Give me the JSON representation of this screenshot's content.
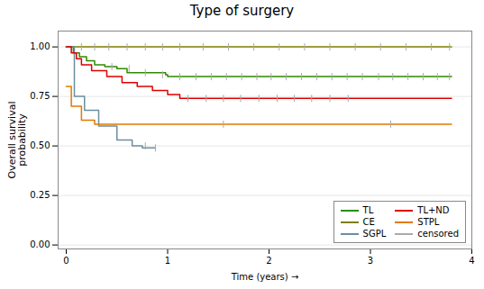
{
  "chart_data": {
    "type": "line",
    "title": "Type of surgery",
    "xlabel": "Time (years)",
    "ylabel": "Overall survival\nprobability",
    "xlim": [
      -0.08,
      4.0
    ],
    "ylim": [
      -0.02,
      1.08
    ],
    "xticks": [
      0,
      1,
      2,
      3,
      4
    ],
    "yticks": [
      {
        "value": 0,
        "label": "0.00"
      },
      {
        "value": 0.25,
        "label": "0.25"
      },
      {
        "value": 0.5,
        "label": "0.50"
      },
      {
        "value": 0.75,
        "label": "0.75"
      },
      {
        "value": 1,
        "label": "1.00"
      }
    ],
    "grid": true,
    "legend": "lower right",
    "series": [
      {
        "name": "TL",
        "type": "line",
        "color": "#2E8B00",
        "x": [
          0,
          0.07,
          0.07,
          0.13,
          0.13,
          0.2,
          0.2,
          0.28,
          0.28,
          0.38,
          0.38,
          0.5,
          0.5,
          0.6,
          0.6,
          0.98,
          0.98,
          1.0,
          1.0,
          3.8
        ],
        "values": [
          1.0,
          1.0,
          0.97,
          0.97,
          0.95,
          0.95,
          0.93,
          0.93,
          0.91,
          0.91,
          0.9,
          0.9,
          0.89,
          0.89,
          0.87,
          0.87,
          0.86,
          0.86,
          0.85,
          0.85
        ]
      },
      {
        "name": "CE",
        "type": "line",
        "color": "#808000",
        "x": [
          0,
          3.8
        ],
        "values": [
          1.0,
          1.0
        ]
      },
      {
        "name": "SGPL",
        "type": "line",
        "color": "#6B8E9F",
        "x": [
          0,
          0.08,
          0.08,
          0.18,
          0.18,
          0.32,
          0.32,
          0.5,
          0.5,
          0.65,
          0.65,
          0.75,
          0.75,
          0.88
        ],
        "values": [
          1.0,
          1.0,
          0.75,
          0.75,
          0.68,
          0.68,
          0.6,
          0.6,
          0.53,
          0.53,
          0.5,
          0.5,
          0.49,
          0.49
        ]
      },
      {
        "name": "TL+ND",
        "type": "line",
        "color": "#DD0000",
        "x": [
          0,
          0.05,
          0.05,
          0.1,
          0.1,
          0.15,
          0.15,
          0.25,
          0.25,
          0.4,
          0.4,
          0.55,
          0.55,
          0.7,
          0.7,
          0.85,
          0.85,
          1.0,
          1.0,
          1.12,
          1.12,
          3.1,
          3.1,
          3.8
        ],
        "values": [
          1.0,
          1.0,
          0.97,
          0.97,
          0.94,
          0.94,
          0.91,
          0.91,
          0.88,
          0.88,
          0.85,
          0.85,
          0.82,
          0.82,
          0.8,
          0.8,
          0.78,
          0.78,
          0.76,
          0.76,
          0.74,
          0.74,
          0.74,
          0.74
        ]
      },
      {
        "name": "STPL",
        "type": "line",
        "color": "#E07B00",
        "x": [
          0,
          0.05,
          0.05,
          0.15,
          0.15,
          0.28,
          0.28,
          3.8
        ],
        "values": [
          0.8,
          0.8,
          0.7,
          0.7,
          0.63,
          0.63,
          0.61,
          0.61
        ]
      },
      {
        "name": "censored",
        "type": "scatter",
        "marker": "tick",
        "color": "#aaaaaa",
        "x": [
          0.45,
          0.62,
          0.78,
          0.95,
          1.12,
          1.28,
          1.43,
          1.58,
          1.73,
          1.88,
          2.02,
          2.17,
          2.32,
          2.47,
          2.62,
          2.77,
          2.92,
          3.08,
          3.22,
          3.37,
          3.52,
          3.66,
          3.78,
          0.15,
          0.28,
          0.42,
          0.6,
          0.78,
          0.95,
          1.12,
          1.35,
          1.6,
          1.85,
          2.1,
          2.35,
          2.6,
          2.85,
          3.1,
          3.35,
          3.6,
          3.78,
          0.78,
          0.88,
          1.2,
          1.38,
          1.55,
          1.72,
          1.9,
          2.08,
          2.25,
          2.42,
          2.6,
          2.78,
          1.55,
          3.2
        ],
        "values": [
          0.9,
          0.89,
          0.87,
          0.86,
          0.85,
          0.85,
          0.85,
          0.85,
          0.85,
          0.85,
          0.85,
          0.85,
          0.85,
          0.85,
          0.85,
          0.85,
          0.85,
          0.85,
          0.85,
          0.85,
          0.85,
          0.85,
          0.85,
          1.0,
          1.0,
          1.0,
          1.0,
          1.0,
          1.0,
          1.0,
          1.0,
          1.0,
          1.0,
          1.0,
          1.0,
          1.0,
          1.0,
          1.0,
          1.0,
          1.0,
          1.0,
          0.5,
          0.49,
          0.74,
          0.74,
          0.74,
          0.74,
          0.74,
          0.74,
          0.74,
          0.74,
          0.74,
          0.74,
          0.61,
          0.61
        ]
      }
    ]
  }
}
